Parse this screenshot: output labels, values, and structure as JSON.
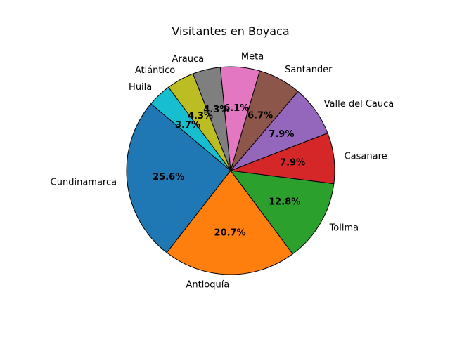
{
  "chart_data": {
    "type": "pie",
    "title": "Visitantes en Boyaca",
    "start_angle_deg": 140,
    "direction": "counterclockwise",
    "slices": [
      {
        "label": "Cundinamarca",
        "value": 25.6,
        "pct_label": "25.6%",
        "color": "#1f77b4"
      },
      {
        "label": "Antioquía",
        "value": 20.7,
        "pct_label": "20.7%",
        "color": "#ff7f0e"
      },
      {
        "label": "Tolima",
        "value": 12.8,
        "pct_label": "12.8%",
        "color": "#2ca02c"
      },
      {
        "label": "Casanare",
        "value": 7.9,
        "pct_label": "7.9%",
        "color": "#d62728"
      },
      {
        "label": "Valle del Cauca",
        "value": 7.9,
        "pct_label": "7.9%",
        "color": "#9467bd"
      },
      {
        "label": "Santander",
        "value": 6.7,
        "pct_label": "6.7%",
        "color": "#8c564b"
      },
      {
        "label": "Meta",
        "value": 6.1,
        "pct_label": "6.1%",
        "color": "#e377c2"
      },
      {
        "label": "Arauca",
        "value": 4.3,
        "pct_label": "4.3%",
        "color": "#7f7f7f"
      },
      {
        "label": "Atlántico",
        "value": 4.3,
        "pct_label": "4.3%",
        "color": "#bcbd22"
      },
      {
        "label": "Huila",
        "value": 3.7,
        "pct_label": "3.7%",
        "color": "#17becf"
      }
    ]
  }
}
